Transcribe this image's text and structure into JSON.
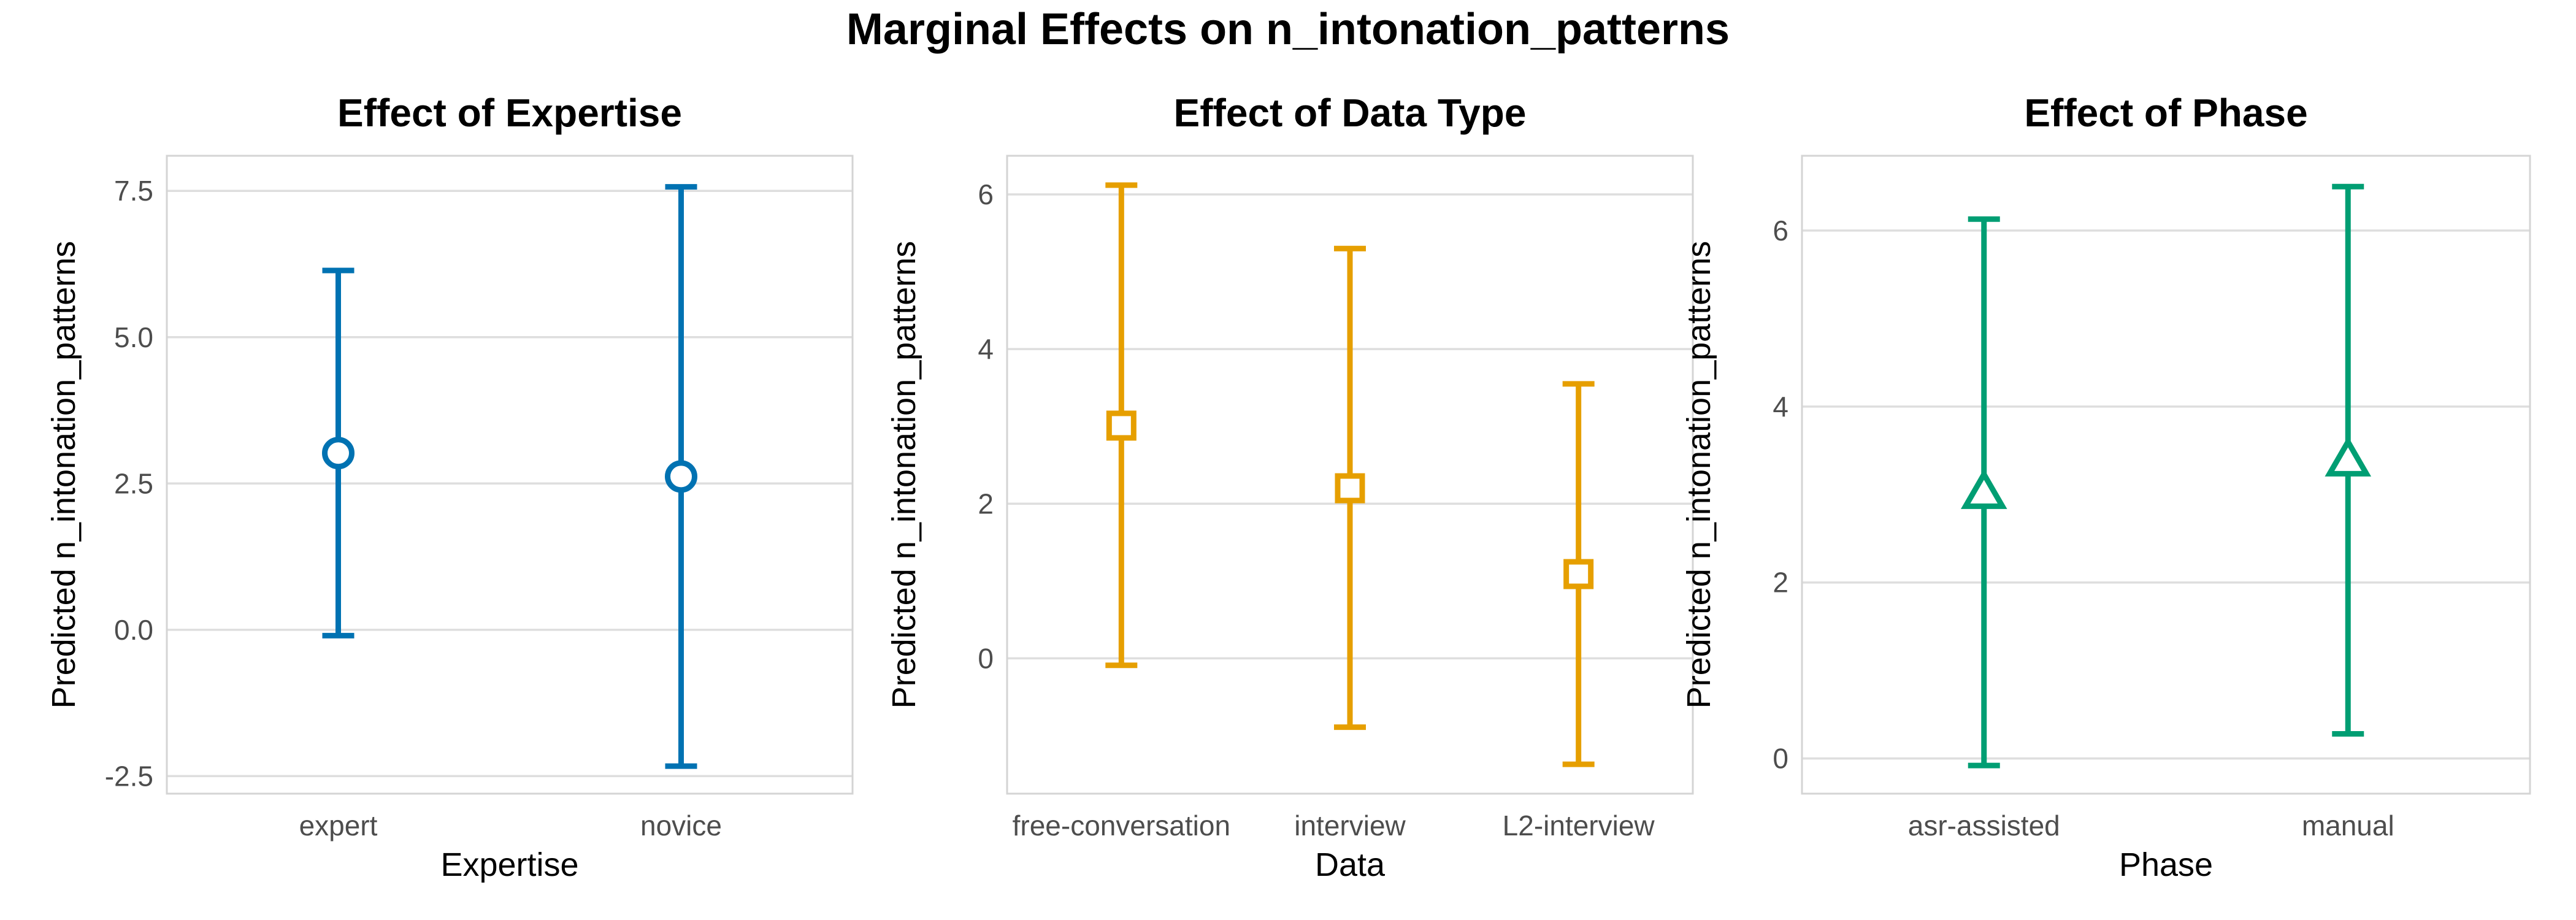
{
  "figure": {
    "title": "Marginal Effects on n_intonation_patterns"
  },
  "chart_data": [
    {
      "type": "scatter",
      "error_bars": true,
      "title": "Effect of Expertise",
      "xlabel": "Expertise",
      "ylabel": "Predicted n_intonation_patterns",
      "categories": [
        "expert",
        "novice"
      ],
      "values": [
        3.02,
        2.62
      ],
      "lower": [
        -0.1,
        -2.33
      ],
      "upper": [
        6.14,
        7.57
      ],
      "ylim": [
        -2.8,
        8.1
      ],
      "yticks": [
        -2.5,
        0.0,
        2.5,
        5.0,
        7.5
      ],
      "ytick_labels": [
        "-2.5",
        "0.0",
        "2.5",
        "5.0",
        "7.5"
      ],
      "marker": "circle",
      "color": "#0072B2",
      "grid": true,
      "legend": "none"
    },
    {
      "type": "scatter",
      "error_bars": true,
      "title": "Effect of Data Type",
      "xlabel": "Data",
      "ylabel": "Predicted n_intonation_patterns",
      "categories": [
        "free-conversation",
        "interview",
        "L2-interview"
      ],
      "values": [
        3.01,
        2.2,
        1.09
      ],
      "lower": [
        -0.09,
        -0.89,
        -1.37
      ],
      "upper": [
        6.12,
        5.3,
        3.55
      ],
      "ylim": [
        -1.75,
        6.5
      ],
      "yticks": [
        0,
        2,
        4,
        6
      ],
      "ytick_labels": [
        "0",
        "2",
        "4",
        "6"
      ],
      "marker": "square",
      "color": "#E69F00",
      "grid": true,
      "legend": "none"
    },
    {
      "type": "scatter",
      "error_bars": true,
      "title": "Effect of Phase",
      "xlabel": "Phase",
      "ylabel": "Predicted n_intonation_patterns",
      "categories": [
        "asr-assisted",
        "manual"
      ],
      "values": [
        3.02,
        3.39
      ],
      "lower": [
        -0.08,
        0.28
      ],
      "upper": [
        6.13,
        6.5
      ],
      "ylim": [
        -0.4,
        6.85
      ],
      "yticks": [
        0,
        2,
        4,
        6
      ],
      "ytick_labels": [
        "0",
        "2",
        "4",
        "6"
      ],
      "marker": "triangle",
      "color": "#009E73",
      "grid": true,
      "legend": "none"
    }
  ]
}
